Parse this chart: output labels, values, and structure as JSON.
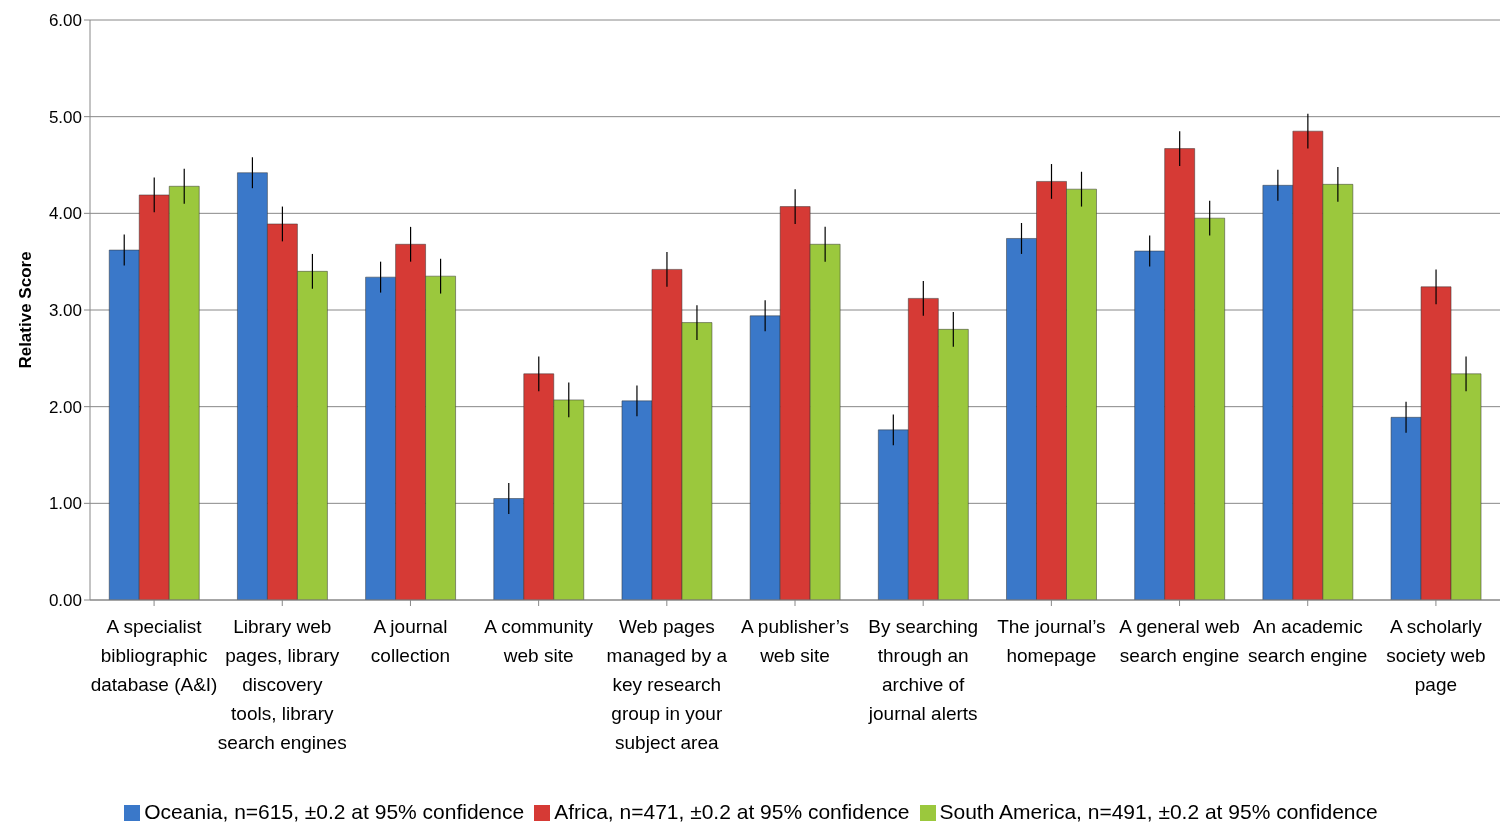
{
  "chart_data": {
    "type": "bar",
    "ylabel": "Relative Score",
    "categories": [
      "A specialist bibliographic database (A&I)",
      "Library web pages, library discovery tools, library search engines",
      "A journal collection",
      "A community web site",
      "Web pages managed by a key research group in your subject area",
      "A publisher’s web site",
      "By searching through an archive of journal alerts",
      "The journal’s homepage",
      "A general web search engine",
      "An academic search engine",
      "A scholarly society web page"
    ],
    "series": [
      {
        "name": "Oceania, n=615, ±0.2 at 95% confidence",
        "color": "#3a78c9",
        "values": [
          3.62,
          4.42,
          3.34,
          1.05,
          2.06,
          2.94,
          1.76,
          3.74,
          3.61,
          4.29,
          1.89
        ],
        "errors": [
          0.16,
          0.16,
          0.16,
          0.16,
          0.16,
          0.16,
          0.16,
          0.16,
          0.16,
          0.16,
          0.16
        ]
      },
      {
        "name": "Africa, n=471, ±0.2 at 95% confidence",
        "color": "#d63a35",
        "values": [
          4.19,
          3.89,
          3.68,
          2.34,
          3.42,
          4.07,
          3.12,
          4.33,
          4.67,
          4.85,
          3.24
        ],
        "errors": [
          0.18,
          0.18,
          0.18,
          0.18,
          0.18,
          0.18,
          0.18,
          0.18,
          0.18,
          0.18,
          0.18
        ]
      },
      {
        "name": "South America, n=491, ±0.2 at 95% confidence",
        "color": "#9bc83d",
        "values": [
          4.28,
          3.4,
          3.35,
          2.07,
          2.87,
          3.68,
          2.8,
          4.25,
          3.95,
          4.3,
          2.34
        ],
        "errors": [
          0.18,
          0.18,
          0.18,
          0.18,
          0.18,
          0.18,
          0.18,
          0.18,
          0.18,
          0.18,
          0.18
        ]
      }
    ],
    "ylim": [
      0,
      6
    ],
    "yticks": [
      {
        "value": 0,
        "label": "0.00"
      },
      {
        "value": 1,
        "label": "1.00"
      },
      {
        "value": 2,
        "label": "2.00"
      },
      {
        "value": 3,
        "label": "3.00"
      },
      {
        "value": 4,
        "label": "4.00"
      },
      {
        "value": 5,
        "label": "5.00"
      },
      {
        "value": 6,
        "label": "6.00"
      }
    ],
    "grid": "y",
    "legend": "bottom"
  }
}
